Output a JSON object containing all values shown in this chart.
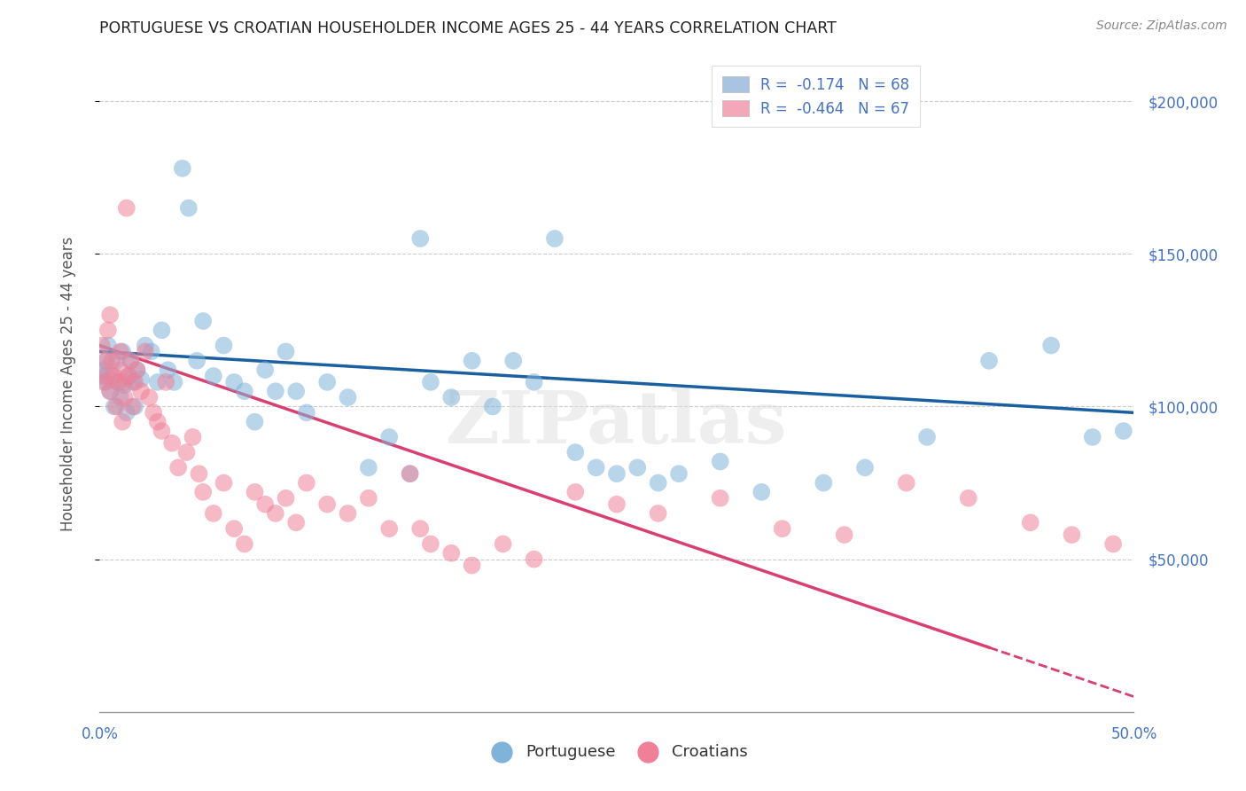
{
  "title": "PORTUGUESE VS CROATIAN HOUSEHOLDER INCOME AGES 25 - 44 YEARS CORRELATION CHART",
  "source": "Source: ZipAtlas.com",
  "ylabel": "Householder Income Ages 25 - 44 years",
  "xlim": [
    0.0,
    0.5
  ],
  "ylim": [
    0,
    215000
  ],
  "ytick_values": [
    50000,
    100000,
    150000,
    200000
  ],
  "xtick_positions": [
    0.0,
    0.05,
    0.1,
    0.15,
    0.2,
    0.25,
    0.3,
    0.35,
    0.4,
    0.45,
    0.5
  ],
  "legend_label_blue": "R =  -0.174   N = 68",
  "legend_label_pink": "R =  -0.464   N = 67",
  "legend_color_blue": "#a8c4e0",
  "legend_color_pink": "#f4a7b9",
  "scatter_color_blue": "#7fb3d9",
  "scatter_color_pink": "#f08098",
  "trend_color_blue": "#1a5fa0",
  "trend_color_pink": "#d94070",
  "watermark": "ZIPatlas",
  "portuguese_x": [
    0.001,
    0.002,
    0.003,
    0.003,
    0.004,
    0.005,
    0.006,
    0.007,
    0.008,
    0.009,
    0.01,
    0.011,
    0.012,
    0.013,
    0.014,
    0.015,
    0.016,
    0.017,
    0.018,
    0.02,
    0.022,
    0.025,
    0.028,
    0.03,
    0.033,
    0.036,
    0.04,
    0.043,
    0.047,
    0.05,
    0.055,
    0.06,
    0.065,
    0.07,
    0.075,
    0.08,
    0.085,
    0.09,
    0.095,
    0.1,
    0.11,
    0.12,
    0.13,
    0.14,
    0.15,
    0.155,
    0.16,
    0.17,
    0.18,
    0.19,
    0.2,
    0.21,
    0.22,
    0.23,
    0.24,
    0.25,
    0.26,
    0.27,
    0.28,
    0.3,
    0.32,
    0.35,
    0.37,
    0.4,
    0.43,
    0.46,
    0.48,
    0.495
  ],
  "portuguese_y": [
    110000,
    112000,
    108000,
    115000,
    120000,
    105000,
    110000,
    100000,
    115000,
    108000,
    103000,
    118000,
    107000,
    98000,
    110000,
    115000,
    108000,
    100000,
    112000,
    109000,
    120000,
    118000,
    108000,
    125000,
    112000,
    108000,
    178000,
    165000,
    115000,
    128000,
    110000,
    120000,
    108000,
    105000,
    95000,
    112000,
    105000,
    118000,
    105000,
    98000,
    108000,
    103000,
    80000,
    90000,
    78000,
    155000,
    108000,
    103000,
    115000,
    100000,
    115000,
    108000,
    155000,
    85000,
    80000,
    78000,
    80000,
    75000,
    78000,
    82000,
    72000,
    75000,
    80000,
    90000,
    115000,
    120000,
    90000,
    92000
  ],
  "croatian_x": [
    0.001,
    0.002,
    0.003,
    0.003,
    0.004,
    0.005,
    0.005,
    0.006,
    0.007,
    0.008,
    0.009,
    0.01,
    0.01,
    0.011,
    0.012,
    0.012,
    0.013,
    0.014,
    0.015,
    0.016,
    0.017,
    0.018,
    0.02,
    0.022,
    0.024,
    0.026,
    0.028,
    0.03,
    0.032,
    0.035,
    0.038,
    0.042,
    0.045,
    0.048,
    0.05,
    0.055,
    0.06,
    0.065,
    0.07,
    0.075,
    0.08,
    0.085,
    0.09,
    0.095,
    0.1,
    0.11,
    0.12,
    0.13,
    0.14,
    0.15,
    0.155,
    0.16,
    0.17,
    0.18,
    0.195,
    0.21,
    0.23,
    0.25,
    0.27,
    0.3,
    0.33,
    0.36,
    0.39,
    0.42,
    0.45,
    0.47,
    0.49
  ],
  "croatian_y": [
    120000,
    108000,
    115000,
    110000,
    125000,
    130000,
    105000,
    115000,
    110000,
    100000,
    108000,
    112000,
    118000,
    95000,
    108000,
    103000,
    165000,
    110000,
    115000,
    100000,
    108000,
    112000,
    105000,
    118000,
    103000,
    98000,
    95000,
    92000,
    108000,
    88000,
    80000,
    85000,
    90000,
    78000,
    72000,
    65000,
    75000,
    60000,
    55000,
    72000,
    68000,
    65000,
    70000,
    62000,
    75000,
    68000,
    65000,
    70000,
    60000,
    78000,
    60000,
    55000,
    52000,
    48000,
    55000,
    50000,
    72000,
    68000,
    65000,
    70000,
    60000,
    58000,
    75000,
    70000,
    62000,
    58000,
    55000
  ]
}
